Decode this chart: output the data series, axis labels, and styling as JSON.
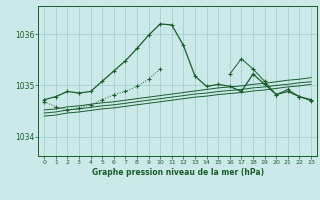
{
  "title": "Graphe pression niveau de la mer (hPa)",
  "bg_color": "#cce9e9",
  "grid_color": "#99cccc",
  "line_color": "#1a5c2a",
  "spine_color": "#1a5c2a",
  "xlim": [
    -0.5,
    23.5
  ],
  "ylim": [
    1033.62,
    1036.55
  ],
  "yticks": [
    1034,
    1035,
    1036
  ],
  "xticks": [
    0,
    1,
    2,
    3,
    4,
    5,
    6,
    7,
    8,
    9,
    10,
    11,
    12,
    13,
    14,
    15,
    16,
    17,
    18,
    19,
    20,
    21,
    22,
    23
  ],
  "series_main": [
    1034.72,
    1034.78,
    1034.88,
    1034.85,
    1034.88,
    1035.08,
    1035.28,
    1035.48,
    1035.72,
    1035.98,
    1036.2,
    1036.18,
    1035.78,
    1035.18,
    1034.98,
    1035.02,
    1034.98,
    1034.88,
    1035.22,
    1035.02,
    1034.82,
    1034.88,
    1034.78,
    1034.72
  ],
  "series_dotted": [
    1034.68,
    1034.58,
    1034.52,
    1034.56,
    1034.62,
    1034.72,
    1034.82,
    1034.88,
    1034.98,
    1035.12,
    1035.32,
    null,
    null,
    null,
    null,
    null,
    null,
    null,
    null,
    null,
    null,
    null,
    null,
    null
  ],
  "series_flat1": [
    1034.52,
    1034.54,
    1034.58,
    1034.6,
    1034.63,
    1034.66,
    1034.68,
    1034.71,
    1034.74,
    1034.77,
    1034.8,
    1034.83,
    1034.86,
    1034.89,
    1034.92,
    1034.95,
    1034.97,
    1034.99,
    1035.02,
    1035.04,
    1035.07,
    1035.1,
    1035.12,
    1035.15
  ],
  "series_flat2": [
    1034.46,
    1034.48,
    1034.52,
    1034.54,
    1034.57,
    1034.6,
    1034.62,
    1034.65,
    1034.68,
    1034.71,
    1034.74,
    1034.77,
    1034.8,
    1034.83,
    1034.85,
    1034.88,
    1034.9,
    1034.92,
    1034.95,
    1034.97,
    1035.0,
    1035.02,
    1035.05,
    1035.07
  ],
  "series_flat3": [
    1034.4,
    1034.42,
    1034.46,
    1034.48,
    1034.51,
    1034.54,
    1034.56,
    1034.59,
    1034.62,
    1034.65,
    1034.68,
    1034.71,
    1034.74,
    1034.77,
    1034.79,
    1034.82,
    1034.84,
    1034.86,
    1034.89,
    1034.91,
    1034.94,
    1034.97,
    1034.99,
    1035.02
  ],
  "series_upper": [
    null,
    null,
    null,
    null,
    null,
    null,
    null,
    null,
    null,
    null,
    null,
    null,
    null,
    null,
    null,
    null,
    1035.22,
    1035.52,
    1035.32,
    1035.08,
    1034.82,
    1034.92,
    1034.78,
    1034.7
  ]
}
